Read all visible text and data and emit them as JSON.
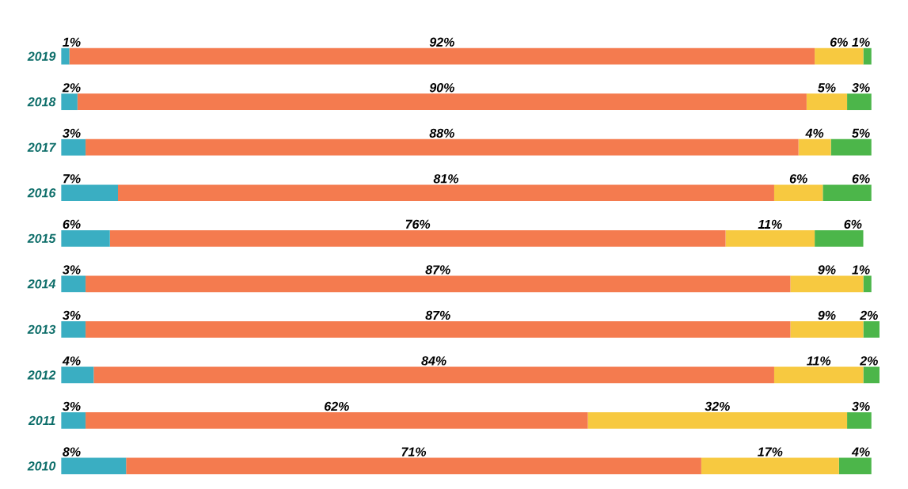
{
  "chart_data": {
    "type": "bar",
    "orientation": "horizontal",
    "stacked": true,
    "categories": [
      "2019",
      "2018",
      "2017",
      "2016",
      "2015",
      "2014",
      "2013",
      "2012",
      "2011",
      "2010"
    ],
    "series": [
      {
        "color": "#3aaec2",
        "values": [
          1,
          2,
          3,
          7,
          6,
          3,
          3,
          4,
          3,
          8
        ],
        "value_labels": [
          "1%",
          "2%",
          "3%",
          "7%",
          "6%",
          "3%",
          "3%",
          "4%",
          "3%",
          "8%"
        ]
      },
      {
        "color": "#f47b4f",
        "values": [
          92,
          90,
          88,
          81,
          76,
          87,
          87,
          84,
          62,
          71
        ],
        "value_labels": [
          "92%",
          "90%",
          "88%",
          "81%",
          "76%",
          "87%",
          "87%",
          "84%",
          "62%",
          "71%"
        ]
      },
      {
        "color": "#f7c940",
        "values": [
          6,
          5,
          4,
          6,
          11,
          9,
          9,
          11,
          32,
          17
        ],
        "value_labels": [
          "6%",
          "5%",
          "4%",
          "6%",
          "11%",
          "9%",
          "9%",
          "11%",
          "32%",
          "17%"
        ]
      },
      {
        "color": "#4cb64a",
        "values": [
          1,
          3,
          5,
          6,
          6,
          1,
          2,
          2,
          3,
          4
        ],
        "value_labels": [
          "1%",
          "3%",
          "5%",
          "6%",
          "6%",
          "1%",
          "2%",
          "2%",
          "3%",
          "4%"
        ]
      }
    ]
  }
}
